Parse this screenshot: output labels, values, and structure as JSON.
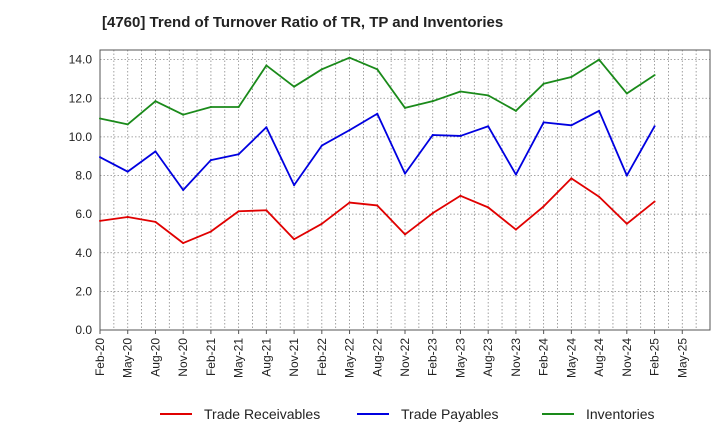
{
  "title": "[4760]  Trend of Turnover Ratio of TR, TP and Inventories",
  "chart_data": {
    "type": "line",
    "title": "[4760]  Trend of Turnover Ratio of TR, TP and Inventories",
    "xlabel": "",
    "ylabel": "",
    "x": [
      "Feb-20",
      "May-20",
      "Aug-20",
      "Nov-20",
      "Feb-21",
      "May-21",
      "Aug-21",
      "Nov-21",
      "Feb-22",
      "May-22",
      "Aug-22",
      "Nov-22",
      "Feb-23",
      "May-23",
      "Aug-23",
      "Nov-23",
      "Feb-24",
      "May-24",
      "Aug-24",
      "Nov-24",
      "Feb-25",
      "May-25"
    ],
    "ylim": [
      0,
      14.5
    ],
    "yticks": [
      "0.0",
      "2.0",
      "4.0",
      "6.0",
      "8.0",
      "10.0",
      "12.0",
      "14.0"
    ],
    "grid": true,
    "legend": "bottom",
    "series": [
      {
        "name": "Trade Receivables",
        "color": "#e00000",
        "values": [
          5.65,
          5.85,
          5.6,
          4.5,
          5.1,
          6.15,
          6.2,
          4.7,
          5.5,
          6.6,
          6.45,
          4.95,
          6.05,
          6.95,
          6.35,
          5.2,
          6.4,
          7.85,
          6.9,
          5.5,
          6.65,
          null
        ]
      },
      {
        "name": "Trade Payables",
        "color": "#0000e0",
        "values": [
          8.95,
          8.2,
          9.25,
          7.25,
          8.8,
          9.1,
          10.5,
          7.5,
          9.55,
          10.35,
          11.2,
          8.1,
          10.1,
          10.05,
          10.55,
          8.05,
          10.75,
          10.6,
          11.35,
          8.0,
          10.55,
          null
        ]
      },
      {
        "name": "Inventories",
        "color": "#1a8a1a",
        "values": [
          10.95,
          10.65,
          11.85,
          11.15,
          11.55,
          11.55,
          13.7,
          12.6,
          13.5,
          14.1,
          13.5,
          11.5,
          11.85,
          12.35,
          12.15,
          11.35,
          12.75,
          13.1,
          14.0,
          12.25,
          13.2,
          null
        ]
      }
    ]
  }
}
